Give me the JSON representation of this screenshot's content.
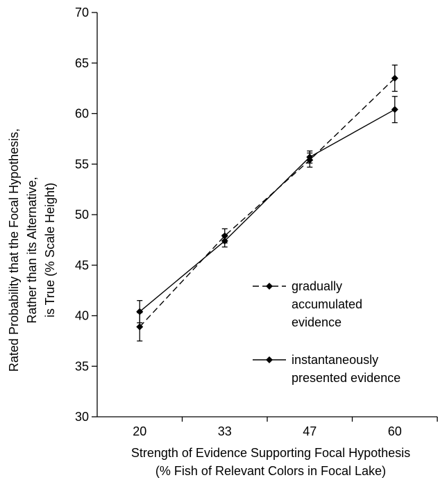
{
  "chart_data": {
    "type": "line",
    "categories": [
      "20",
      "33",
      "47",
      "60"
    ],
    "ylabel_lines": [
      "Rated Probability that the Focal Hypothesis,",
      "Rather than its Alternative,",
      "is True (% Scale Height)"
    ],
    "xlabel_lines": [
      "Strength of Evidence Supporting Focal Hypothesis",
      "(% Fish of Relevant Colors in Focal Lake)"
    ],
    "ylim": [
      30,
      70
    ],
    "yticks": [
      "30",
      "35",
      "40",
      "45",
      "50",
      "55",
      "60",
      "65",
      "70"
    ],
    "grid": false,
    "legend_position": "right",
    "series": [
      {
        "legend_lines": [
          "gradually",
          "accumulated",
          "evidence"
        ],
        "dashed": true,
        "values": [
          38.9,
          47.9,
          55.4,
          63.5
        ],
        "errors": [
          1.4,
          0.7,
          0.7,
          1.3
        ]
      },
      {
        "legend_lines": [
          "instantaneously",
          "presented evidence"
        ],
        "dashed": false,
        "values": [
          40.4,
          47.4,
          55.7,
          60.4
        ],
        "errors": [
          1.1,
          0.6,
          0.6,
          1.3
        ]
      }
    ]
  }
}
